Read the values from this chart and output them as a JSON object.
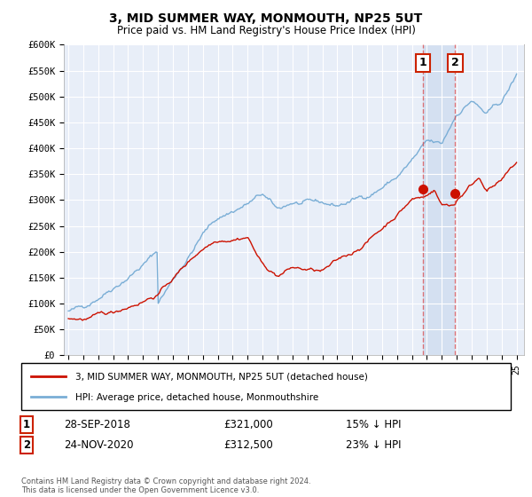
{
  "title": "3, MID SUMMER WAY, MONMOUTH, NP25 5UT",
  "subtitle": "Price paid vs. HM Land Registry's House Price Index (HPI)",
  "hpi_color": "#7aaed6",
  "price_color": "#cc1100",
  "vline_color": "#dd4444",
  "vline_alpha": 0.6,
  "bg_color": "#e8eef8",
  "shade_color": "#d0ddf0",
  "grid_color": "#ffffff",
  "ylim": [
    0,
    600000
  ],
  "yticks": [
    0,
    50000,
    100000,
    150000,
    200000,
    250000,
    300000,
    350000,
    400000,
    450000,
    500000,
    550000,
    600000
  ],
  "ytick_labels": [
    "£0",
    "£50K",
    "£100K",
    "£150K",
    "£200K",
    "£250K",
    "£300K",
    "£350K",
    "£400K",
    "£450K",
    "£500K",
    "£550K",
    "£600K"
  ],
  "legend_entry1": "3, MID SUMMER WAY, MONMOUTH, NP25 5UT (detached house)",
  "legend_entry2": "HPI: Average price, detached house, Monmouthshire",
  "annotation1_date": "28-SEP-2018",
  "annotation1_price": "£321,000",
  "annotation1_hpi": "15% ↓ HPI",
  "annotation2_date": "24-NOV-2020",
  "annotation2_price": "£312,500",
  "annotation2_hpi": "23% ↓ HPI",
  "footnote": "Contains HM Land Registry data © Crown copyright and database right 2024.\nThis data is licensed under the Open Government Licence v3.0.",
  "marker1_x": 2018.75,
  "marker1_y": 321000,
  "marker2_x": 2020.9,
  "marker2_y": 312500,
  "vline1_x": 2018.75,
  "vline2_x": 2020.9,
  "xmin": 1995,
  "xmax": 2025
}
